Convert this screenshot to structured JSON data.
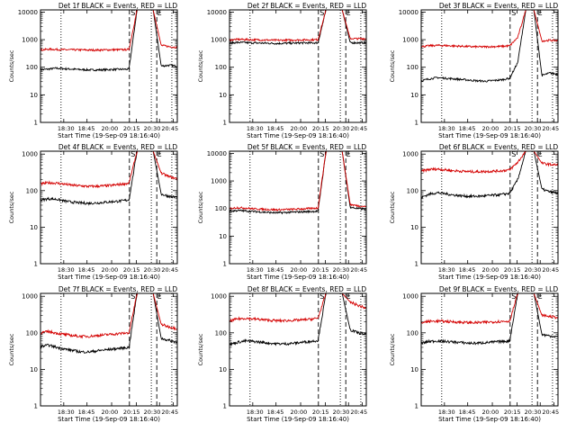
{
  "figure": {
    "colors": {
      "events": "#000000",
      "lld": "#d40000",
      "axes": "#000000"
    },
    "tick_labels_x": [
      "18:30",
      "18:45",
      "20:00",
      "20:15",
      "20:30",
      "20:45"
    ],
    "tick_labels_y": [
      "1",
      "10",
      "100",
      "1000",
      "10000"
    ],
    "line_styles": {
      "dotted": "dotted",
      "dashed": "dashed"
    }
  },
  "chart_data": [
    {
      "type": "line",
      "title": "Det 1f BLACK = Events, RED = LLD",
      "xlabel": "Start Time (19-Sep-09 18:16:40)",
      "ylabel": "Counts/sec",
      "yscale": "log",
      "ylim": [
        1,
        12000
      ],
      "y_ticks": [
        1,
        10,
        100,
        1000,
        10000
      ],
      "x_ticks": [
        "18:30",
        "18:45",
        "20:00",
        "20:15",
        "20:30",
        "20:45"
      ],
      "markers": [
        "S",
        "E"
      ],
      "series": [
        {
          "name": "Events",
          "color": "#000000",
          "values": [
            80,
            86,
            92,
            88,
            85,
            82,
            80,
            80,
            81,
            83,
            84,
            85,
            12000,
            12000,
            12000,
            110,
            118,
            110
          ]
        },
        {
          "name": "LLD",
          "color": "#d40000",
          "values": [
            420,
            450,
            440,
            430,
            430,
            425,
            420,
            420,
            425,
            430,
            430,
            440,
            12000,
            12000,
            12000,
            620,
            560,
            520
          ]
        }
      ]
    },
    {
      "type": "line",
      "title": "Det 2f BLACK = Events, RED = LLD",
      "xlabel": "Start Time (19-Sep-09 18:16:40)",
      "ylabel": "Counts/sec",
      "yscale": "log",
      "ylim": [
        1,
        12000
      ],
      "y_ticks": [
        1,
        10,
        100,
        1000,
        10000
      ],
      "x_ticks": [
        "18:30",
        "18:45",
        "20:00",
        "20:15",
        "20:30",
        "20:45"
      ],
      "markers": [
        "S",
        "E"
      ],
      "series": [
        {
          "name": "Events",
          "color": "#000000",
          "values": [
            760,
            790,
            780,
            760,
            750,
            740,
            730,
            740,
            750,
            760,
            760,
            770,
            12000,
            12000,
            12000,
            780,
            770,
            780
          ]
        },
        {
          "name": "LLD",
          "color": "#d40000",
          "values": [
            980,
            1020,
            1010,
            990,
            980,
            960,
            950,
            960,
            970,
            980,
            990,
            1000,
            12000,
            12000,
            12000,
            1100,
            1080,
            1090
          ]
        }
      ]
    },
    {
      "type": "line",
      "title": "Det 3f BLACK = Events, RED = LLD",
      "xlabel": "Start Time (19-Sep-09 18:16:40)",
      "ylabel": "Counts/sec",
      "yscale": "log",
      "ylim": [
        1,
        12000
      ],
      "y_ticks": [
        1,
        10,
        100,
        1000,
        10000
      ],
      "x_ticks": [
        "18:30",
        "18:45",
        "20:00",
        "20:15",
        "20:30",
        "20:45"
      ],
      "markers": [
        "S",
        "E"
      ],
      "series": [
        {
          "name": "Events",
          "color": "#000000",
          "values": [
            32,
            38,
            42,
            40,
            38,
            36,
            34,
            32,
            31,
            33,
            35,
            40,
            150,
            12000,
            12000,
            50,
            62,
            55
          ]
        },
        {
          "name": "LLD",
          "color": "#d40000",
          "values": [
            560,
            600,
            620,
            610,
            590,
            580,
            560,
            550,
            550,
            560,
            570,
            600,
            1200,
            12000,
            12000,
            900,
            950,
            920
          ]
        }
      ]
    },
    {
      "type": "line",
      "title": "Det 4f BLACK = Events, RED = LLD",
      "xlabel": "Start Time (19-Sep-09 18:16:40)",
      "ylabel": "Counts/sec",
      "yscale": "log",
      "ylim": [
        1,
        1200
      ],
      "y_ticks": [
        1,
        10,
        100,
        1000
      ],
      "x_ticks": [
        "18:30",
        "18:45",
        "20:00",
        "20:15",
        "20:30",
        "20:45"
      ],
      "markers": [
        "S",
        "E"
      ],
      "series": [
        {
          "name": "Events",
          "color": "#000000",
          "values": [
            55,
            60,
            58,
            52,
            48,
            46,
            45,
            46,
            48,
            50,
            52,
            56,
            1200,
            1200,
            1200,
            80,
            70,
            65
          ]
        },
        {
          "name": "LLD",
          "color": "#d40000",
          "values": [
            150,
            165,
            160,
            150,
            140,
            135,
            130,
            132,
            135,
            140,
            150,
            160,
            1200,
            1200,
            1200,
            300,
            240,
            210
          ]
        }
      ]
    },
    {
      "type": "line",
      "title": "Det 5f BLACK = Events, RED = LLD",
      "xlabel": "Start Time (19-Sep-09 18:16:40)",
      "ylabel": "Counts/sec",
      "yscale": "log",
      "ylim": [
        1,
        12000
      ],
      "y_ticks": [
        1,
        10,
        100,
        1000,
        10000
      ],
      "x_ticks": [
        "18:30",
        "18:45",
        "20:00",
        "20:15",
        "20:30",
        "20:45"
      ],
      "markers": [
        "S",
        "E"
      ],
      "series": [
        {
          "name": "Events",
          "color": "#000000",
          "values": [
            80,
            85,
            82,
            78,
            75,
            72,
            70,
            72,
            74,
            76,
            78,
            80,
            12000,
            12000,
            12000,
            110,
            100,
            95
          ]
        },
        {
          "name": "LLD",
          "color": "#d40000",
          "values": [
            100,
            108,
            104,
            98,
            95,
            92,
            90,
            92,
            94,
            97,
            100,
            104,
            12000,
            12000,
            12000,
            140,
            125,
            118
          ]
        }
      ]
    },
    {
      "type": "line",
      "title": "Det 6f BLACK = Events, RED = LLD",
      "xlabel": "Start Time (19-Sep-09 18:16:40)",
      "ylabel": "Counts/sec",
      "yscale": "log",
      "ylim": [
        1,
        1200
      ],
      "y_ticks": [
        1,
        10,
        100,
        1000
      ],
      "x_ticks": [
        "18:30",
        "18:45",
        "20:00",
        "20:15",
        "20:30",
        "20:45"
      ],
      "markers": [
        "S",
        "E"
      ],
      "series": [
        {
          "name": "Events",
          "color": "#000000",
          "values": [
            65,
            80,
            88,
            82,
            76,
            72,
            70,
            70,
            72,
            75,
            78,
            85,
            200,
            1200,
            1200,
            110,
            92,
            85
          ]
        },
        {
          "name": "LLD",
          "color": "#d40000",
          "values": [
            340,
            380,
            390,
            370,
            350,
            340,
            330,
            330,
            335,
            340,
            350,
            370,
            600,
            1200,
            1200,
            560,
            520,
            500
          ]
        }
      ]
    },
    {
      "type": "line",
      "title": "Det 7f BLACK = Events, RED = LLD",
      "xlabel": "Start Time (19-Sep-09 18:16:40)",
      "ylabel": "Counts/sec",
      "yscale": "log",
      "ylim": [
        1,
        1200
      ],
      "y_ticks": [
        1,
        10,
        100,
        1000
      ],
      "x_ticks": [
        "18:30",
        "18:45",
        "20:00",
        "20:15",
        "20:30",
        "20:45"
      ],
      "markers": [
        "S",
        "E"
      ],
      "series": [
        {
          "name": "Events",
          "color": "#000000",
          "values": [
            42,
            46,
            40,
            36,
            33,
            30,
            30,
            32,
            34,
            36,
            38,
            40,
            1200,
            1200,
            1200,
            70,
            62,
            55
          ]
        },
        {
          "name": "LLD",
          "color": "#d40000",
          "values": [
            100,
            108,
            98,
            90,
            84,
            80,
            80,
            84,
            88,
            92,
            96,
            100,
            1200,
            1200,
            1200,
            170,
            145,
            130
          ]
        }
      ]
    },
    {
      "type": "line",
      "title": "Det 8f BLACK = Events, RED = LLD",
      "xlabel": "Start Time (19-Sep-09 18:16:40)",
      "ylabel": "Counts/sec",
      "yscale": "log",
      "ylim": [
        1,
        1200
      ],
      "y_ticks": [
        1,
        10,
        100,
        1000
      ],
      "x_ticks": [
        "18:30",
        "18:45",
        "20:00",
        "20:15",
        "20:30",
        "20:45"
      ],
      "markers": [
        "S",
        "E"
      ],
      "series": [
        {
          "name": "Events",
          "color": "#000000",
          "values": [
            48,
            55,
            60,
            58,
            55,
            52,
            50,
            50,
            52,
            55,
            58,
            62,
            1200,
            1200,
            1200,
            120,
            100,
            90
          ]
        },
        {
          "name": "LLD",
          "color": "#d40000",
          "values": [
            210,
            240,
            250,
            240,
            230,
            220,
            215,
            215,
            220,
            225,
            235,
            250,
            1200,
            1200,
            1200,
            700,
            560,
            470
          ]
        }
      ]
    },
    {
      "type": "line",
      "title": "Det 9f BLACK = Events, RED = LLD",
      "xlabel": "Start Time (19-Sep-09 18:16:40)",
      "ylabel": "Counts/sec",
      "yscale": "log",
      "ylim": [
        1,
        1200
      ],
      "y_ticks": [
        1,
        10,
        100,
        1000
      ],
      "x_ticks": [
        "18:30",
        "18:45",
        "20:00",
        "20:15",
        "20:30",
        "20:45"
      ],
      "markers": [
        "S",
        "E"
      ],
      "series": [
        {
          "name": "Events",
          "color": "#000000",
          "values": [
            52,
            58,
            60,
            58,
            56,
            54,
            52,
            52,
            54,
            56,
            58,
            60,
            1200,
            1200,
            1200,
            90,
            82,
            78
          ]
        },
        {
          "name": "LLD",
          "color": "#d40000",
          "values": [
            190,
            205,
            210,
            205,
            200,
            195,
            190,
            190,
            195,
            200,
            205,
            210,
            1200,
            1200,
            1200,
            300,
            280,
            260
          ]
        }
      ]
    }
  ]
}
